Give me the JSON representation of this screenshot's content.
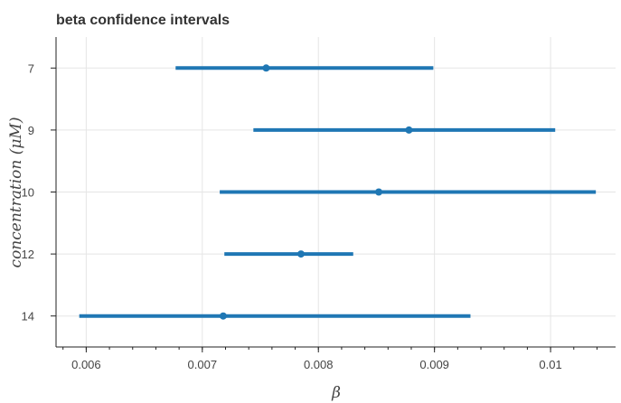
{
  "chart_data": {
    "type": "interval",
    "title": "beta confidence intervals",
    "xlabel": "β",
    "ylabel": "concentration (μM)",
    "categories": [
      "7",
      "9",
      "10",
      "12",
      "14"
    ],
    "estimate": [
      0.00755,
      0.00878,
      0.00852,
      0.00785,
      0.00718
    ],
    "lower": [
      0.00677,
      0.00744,
      0.00715,
      0.00719,
      0.00594
    ],
    "upper": [
      0.00899,
      0.01004,
      0.01039,
      0.0083,
      0.00931
    ],
    "xlim": [
      0.00574,
      0.01056
    ],
    "xticks": [
      0.006,
      0.007,
      0.008,
      0.009,
      0.01
    ],
    "xtick_labels": [
      "0.006",
      "0.007",
      "0.008",
      "0.009",
      "0.01"
    ],
    "grid": true,
    "color": "#1f77b4"
  }
}
